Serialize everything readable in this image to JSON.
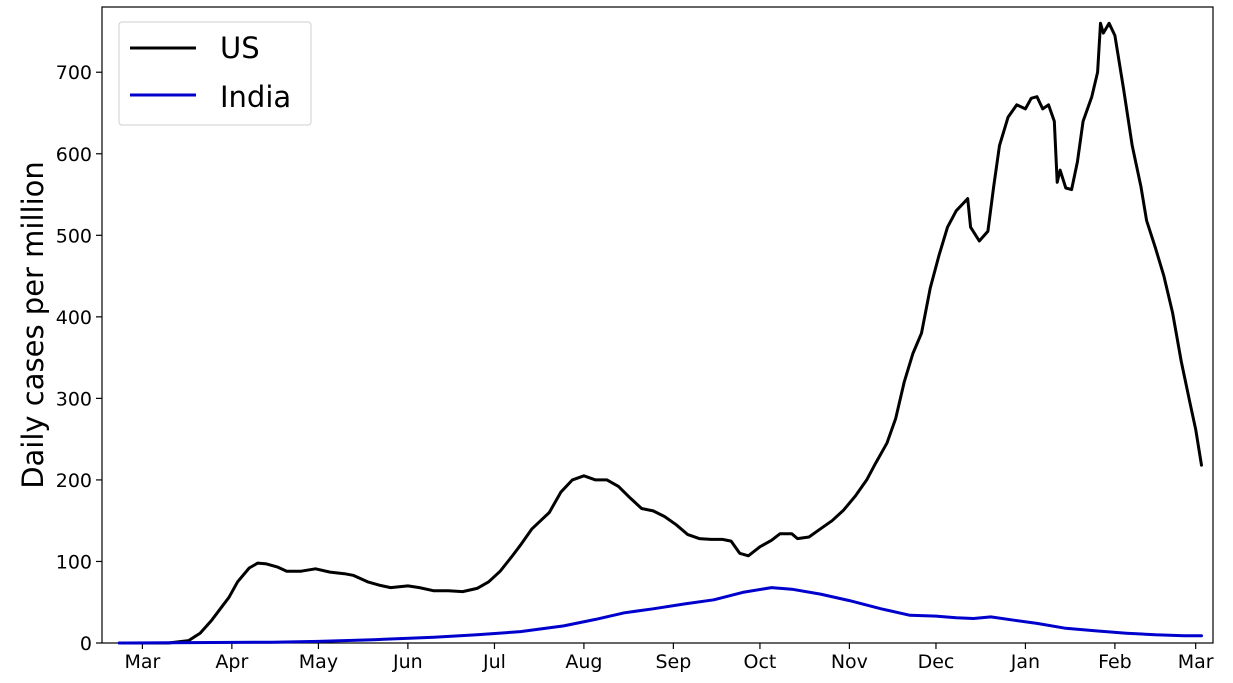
{
  "chart_data": {
    "type": "line",
    "title": "",
    "xlabel": "",
    "ylabel": "Daily cases per million",
    "xlim": [
      "2020-02-16",
      "2021-03-07"
    ],
    "ylim": [
      0,
      780
    ],
    "y_ticks": [
      0,
      100,
      200,
      300,
      400,
      500,
      600,
      700
    ],
    "x_ticks": [
      {
        "date": "2020-03-01",
        "label": "Mar"
      },
      {
        "date": "2020-04-01",
        "label": "Apr"
      },
      {
        "date": "2020-05-01",
        "label": "May"
      },
      {
        "date": "2020-06-01",
        "label": "Jun"
      },
      {
        "date": "2020-07-01",
        "label": "Jul"
      },
      {
        "date": "2020-08-01",
        "label": "Aug"
      },
      {
        "date": "2020-09-01",
        "label": "Sep"
      },
      {
        "date": "2020-10-01",
        "label": "Oct"
      },
      {
        "date": "2020-11-01",
        "label": "Nov"
      },
      {
        "date": "2020-12-01",
        "label": "Dec"
      },
      {
        "date": "2021-01-01",
        "label": "Jan"
      },
      {
        "date": "2021-02-01",
        "label": "Feb"
      },
      {
        "date": "2021-03-01",
        "label": "Mar"
      }
    ],
    "grid": false,
    "legend_position": "top-left",
    "series": [
      {
        "name": "US",
        "color": "#000000",
        "points": [
          [
            "2020-02-22",
            0
          ],
          [
            "2020-03-10",
            0
          ],
          [
            "2020-03-17",
            3
          ],
          [
            "2020-03-21",
            12
          ],
          [
            "2020-03-25",
            28
          ],
          [
            "2020-03-28",
            42
          ],
          [
            "2020-03-31",
            56
          ],
          [
            "2020-04-03",
            75
          ],
          [
            "2020-04-07",
            92
          ],
          [
            "2020-04-10",
            98
          ],
          [
            "2020-04-13",
            97
          ],
          [
            "2020-04-17",
            93
          ],
          [
            "2020-04-20",
            88
          ],
          [
            "2020-04-25",
            88
          ],
          [
            "2020-04-30",
            91
          ],
          [
            "2020-05-05",
            87
          ],
          [
            "2020-05-10",
            85
          ],
          [
            "2020-05-13",
            83
          ],
          [
            "2020-05-18",
            75
          ],
          [
            "2020-05-22",
            71
          ],
          [
            "2020-05-26",
            68
          ],
          [
            "2020-06-01",
            70
          ],
          [
            "2020-06-05",
            68
          ],
          [
            "2020-06-10",
            64
          ],
          [
            "2020-06-15",
            64
          ],
          [
            "2020-06-20",
            63
          ],
          [
            "2020-06-25",
            67
          ],
          [
            "2020-06-29",
            75
          ],
          [
            "2020-07-03",
            88
          ],
          [
            "2020-07-07",
            106
          ],
          [
            "2020-07-10",
            120
          ],
          [
            "2020-07-14",
            140
          ],
          [
            "2020-07-17",
            150
          ],
          [
            "2020-07-20",
            160
          ],
          [
            "2020-07-24",
            185
          ],
          [
            "2020-07-28",
            200
          ],
          [
            "2020-08-01",
            205
          ],
          [
            "2020-08-05",
            200
          ],
          [
            "2020-08-09",
            200
          ],
          [
            "2020-08-13",
            192
          ],
          [
            "2020-08-17",
            178
          ],
          [
            "2020-08-21",
            165
          ],
          [
            "2020-08-25",
            162
          ],
          [
            "2020-08-29",
            155
          ],
          [
            "2020-09-02",
            145
          ],
          [
            "2020-09-06",
            133
          ],
          [
            "2020-09-10",
            128
          ],
          [
            "2020-09-14",
            127
          ],
          [
            "2020-09-18",
            127
          ],
          [
            "2020-09-21",
            125
          ],
          [
            "2020-09-24",
            110
          ],
          [
            "2020-09-27",
            107
          ],
          [
            "2020-10-01",
            118
          ],
          [
            "2020-10-05",
            126
          ],
          [
            "2020-10-08",
            134
          ],
          [
            "2020-10-12",
            134
          ],
          [
            "2020-10-14",
            128
          ],
          [
            "2020-10-18",
            130
          ],
          [
            "2020-10-22",
            140
          ],
          [
            "2020-10-26",
            150
          ],
          [
            "2020-10-30",
            163
          ],
          [
            "2020-11-03",
            180
          ],
          [
            "2020-11-07",
            200
          ],
          [
            "2020-11-10",
            220
          ],
          [
            "2020-11-14",
            245
          ],
          [
            "2020-11-17",
            275
          ],
          [
            "2020-11-20",
            320
          ],
          [
            "2020-11-23",
            355
          ],
          [
            "2020-11-26",
            380
          ],
          [
            "2020-11-29",
            435
          ],
          [
            "2020-12-02",
            475
          ],
          [
            "2020-12-05",
            510
          ],
          [
            "2020-12-08",
            530
          ],
          [
            "2020-12-12",
            545
          ],
          [
            "2020-12-13",
            510
          ],
          [
            "2020-12-16",
            493
          ],
          [
            "2020-12-19",
            505
          ],
          [
            "2020-12-21",
            560
          ],
          [
            "2020-12-23",
            610
          ],
          [
            "2020-12-26",
            645
          ],
          [
            "2020-12-29",
            660
          ],
          [
            "2021-01-01",
            655
          ],
          [
            "2021-01-03",
            668
          ],
          [
            "2021-01-05",
            670
          ],
          [
            "2021-01-07",
            655
          ],
          [
            "2021-01-09",
            660
          ],
          [
            "2021-01-11",
            640
          ],
          [
            "2021-01-12",
            565
          ],
          [
            "2021-01-13",
            580
          ],
          [
            "2021-01-15",
            558
          ],
          [
            "2021-01-17",
            556
          ],
          [
            "2021-01-19",
            590
          ],
          [
            "2021-01-21",
            640
          ],
          [
            "2021-01-24",
            670
          ],
          [
            "2021-01-26",
            700
          ],
          [
            "2021-01-27",
            760
          ],
          [
            "2021-01-28",
            748
          ],
          [
            "2021-01-30",
            760
          ],
          [
            "2021-02-01",
            745
          ],
          [
            "2021-02-04",
            680
          ],
          [
            "2021-02-07",
            610
          ],
          [
            "2021-02-10",
            560
          ],
          [
            "2021-02-12",
            518
          ],
          [
            "2021-02-15",
            485
          ],
          [
            "2021-02-18",
            450
          ],
          [
            "2021-02-21",
            405
          ],
          [
            "2021-02-24",
            345
          ],
          [
            "2021-02-27",
            295
          ],
          [
            "2021-03-01",
            262
          ],
          [
            "2021-03-03",
            218
          ]
        ]
      },
      {
        "name": "India",
        "color": "#0000cc",
        "points": [
          [
            "2020-02-22",
            0
          ],
          [
            "2020-04-15",
            1
          ],
          [
            "2020-05-01",
            2
          ],
          [
            "2020-05-20",
            4
          ],
          [
            "2020-06-10",
            7
          ],
          [
            "2020-06-25",
            10
          ],
          [
            "2020-07-10",
            14
          ],
          [
            "2020-07-25",
            21
          ],
          [
            "2020-08-05",
            29
          ],
          [
            "2020-08-15",
            37
          ],
          [
            "2020-08-25",
            42
          ],
          [
            "2020-09-05",
            48
          ],
          [
            "2020-09-15",
            53
          ],
          [
            "2020-09-25",
            62
          ],
          [
            "2020-10-05",
            68
          ],
          [
            "2020-10-12",
            66
          ],
          [
            "2020-10-22",
            60
          ],
          [
            "2020-11-01",
            52
          ],
          [
            "2020-11-12",
            42
          ],
          [
            "2020-11-22",
            34
          ],
          [
            "2020-12-01",
            33
          ],
          [
            "2020-12-08",
            31
          ],
          [
            "2020-12-14",
            30
          ],
          [
            "2020-12-20",
            32
          ],
          [
            "2020-12-28",
            28
          ],
          [
            "2021-01-05",
            24
          ],
          [
            "2021-01-15",
            18
          ],
          [
            "2021-01-25",
            15
          ],
          [
            "2021-02-05",
            12
          ],
          [
            "2021-02-15",
            10
          ],
          [
            "2021-02-25",
            9
          ],
          [
            "2021-03-03",
            9
          ]
        ]
      }
    ]
  }
}
